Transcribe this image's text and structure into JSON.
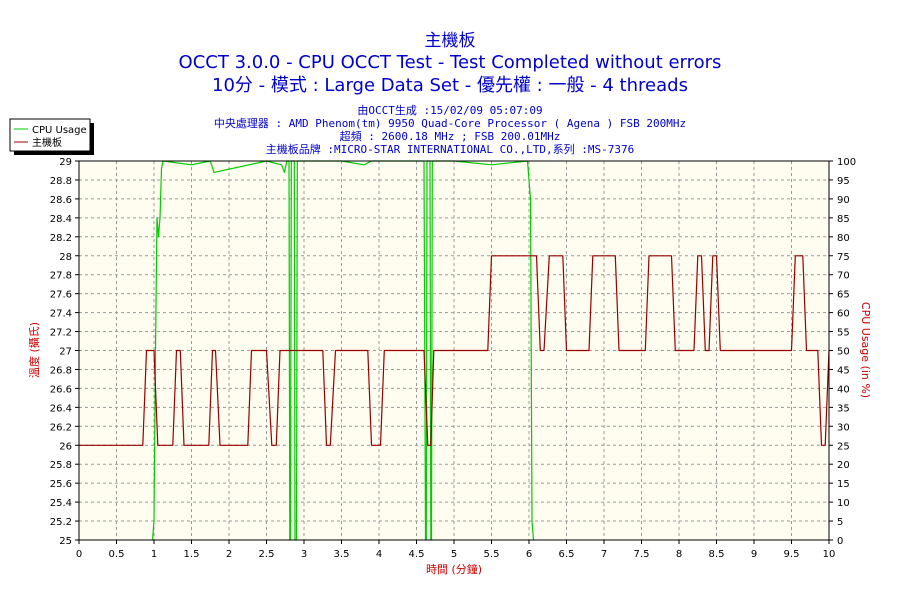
{
  "chart_data": {
    "type": "line",
    "title": "主機板",
    "subtitle1": "OCCT 3.0.0 - CPU OCCT Test - Test Completed without errors",
    "subtitle2": "10分 - 模式 : Large Data Set - 優先權 : 一般 - 4 threads",
    "info_lines": [
      "由OCCT生成 :15/02/09 05:07:09",
      "中央處理器 : AMD Phenom(tm) 9950 Quad-Core Processor ( Agena ) FSB 200MHz",
      "超頻 : 2600.18 MHz ; FSB 200.01MHz",
      "主機板品牌 :MICRO-STAR INTERNATIONAL CO.,LTD,系列 :MS-7376"
    ],
    "xlabel": "時間 (分鐘)",
    "ylabel_left": "溫度 (攝氏)",
    "ylabel_right": "CPU Usage (in %)",
    "xlim": [
      0,
      10
    ],
    "ylim_left": [
      25,
      29
    ],
    "ylim_right": [
      0,
      100
    ],
    "x_ticks": [
      "0",
      "0.5",
      "1",
      "1.5",
      "2",
      "2.5",
      "3",
      "3.5",
      "4",
      "4.5",
      "5",
      "5.5",
      "6",
      "6.5",
      "7",
      "7.5",
      "8",
      "8.5",
      "9",
      "9.5",
      "10"
    ],
    "y_left_ticks": [
      "25",
      "25.2",
      "25.4",
      "25.6",
      "25.8",
      "26",
      "26.2",
      "26.4",
      "26.6",
      "26.8",
      "27",
      "27.2",
      "27.4",
      "27.6",
      "27.8",
      "28",
      "28.2",
      "28.4",
      "28.6",
      "28.8",
      "29"
    ],
    "y_right_ticks": [
      "0",
      "5",
      "10",
      "15",
      "20",
      "25",
      "30",
      "35",
      "40",
      "45",
      "50",
      "55",
      "60",
      "65",
      "70",
      "75",
      "80",
      "85",
      "90",
      "95",
      "100"
    ],
    "grid": true,
    "legend_position": "top-left",
    "colors": {
      "plot_bg": "#fffcf0",
      "grid": "#9a9a9a",
      "cpu_usage": "#00cc00",
      "mainboard": "#990000",
      "title": "#0000cc",
      "axis_title": "#cc0000"
    },
    "series": [
      {
        "name": "CPU Usage",
        "axis": "right",
        "color": "#00cc00",
        "x": [
          0.98,
          1.0,
          1.02,
          1.04,
          1.06,
          1.08,
          1.1,
          1.12,
          1.5,
          1.75,
          1.8,
          2.5,
          2.7,
          2.74,
          2.77,
          2.8,
          2.81,
          2.82,
          2.83,
          2.85,
          2.87,
          2.88,
          2.9,
          2.91,
          2.92,
          2.93,
          3.5,
          3.8,
          3.9,
          4.6,
          4.62,
          4.63,
          4.64,
          4.66,
          4.68,
          4.69,
          4.7,
          4.71,
          5.0,
          5.5,
          5.98,
          6.02,
          6.04,
          6.06
        ],
        "values": [
          0,
          5,
          50,
          85,
          80,
          85,
          98,
          100,
          99,
          100,
          97,
          100,
          99,
          97,
          100,
          100,
          0,
          0,
          100,
          100,
          100,
          0,
          0,
          100,
          100,
          100,
          100,
          99,
          100,
          100,
          0,
          0,
          100,
          100,
          100,
          0,
          0,
          100,
          100,
          99,
          100,
          90,
          5,
          0
        ]
      },
      {
        "name": "主機板",
        "axis": "left",
        "color": "#990000",
        "x": [
          0,
          0.85,
          0.9,
          1.0,
          1.05,
          1.25,
          1.3,
          1.35,
          1.4,
          1.73,
          1.78,
          1.82,
          1.88,
          2.25,
          2.3,
          2.5,
          2.57,
          2.63,
          2.68,
          3.25,
          3.3,
          3.35,
          3.42,
          3.85,
          3.9,
          4.02,
          4.07,
          4.6,
          4.65,
          4.69,
          4.73,
          5.45,
          5.5,
          6.1,
          6.15,
          6.2,
          6.27,
          6.45,
          6.5,
          6.8,
          6.85,
          7.15,
          7.2,
          7.55,
          7.6,
          7.9,
          7.95,
          8.2,
          8.25,
          8.3,
          8.35,
          8.4,
          8.45,
          8.5,
          8.55,
          8.75,
          8.8,
          9.3,
          9.35,
          9.5,
          9.55,
          9.65,
          9.7,
          9.85,
          9.9,
          9.95,
          10.0
        ],
        "values": [
          26,
          26,
          27,
          27,
          26,
          26,
          27,
          27,
          26,
          26,
          27,
          27,
          26,
          26,
          27,
          27,
          26,
          26,
          27,
          27,
          26,
          26,
          27,
          27,
          26,
          26,
          27,
          27,
          26,
          26,
          27,
          27,
          28,
          28,
          27,
          27,
          28,
          28,
          27,
          27,
          28,
          28,
          27,
          27,
          28,
          28,
          27,
          27,
          28,
          28,
          27,
          27,
          28,
          28,
          27,
          27,
          27,
          27,
          27,
          27,
          28,
          28,
          27,
          27,
          26,
          26,
          27
        ]
      }
    ]
  }
}
